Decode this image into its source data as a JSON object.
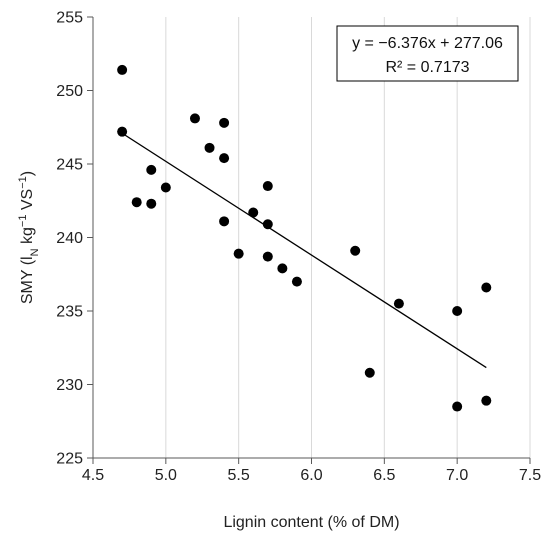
{
  "chart_data": {
    "type": "scatter",
    "xlabel": "Lignin content (% of DM)",
    "ylabel_parts": {
      "main": "SMY (l",
      "sub": "N",
      "mid": " kg",
      "sup1": "−1",
      "mid2": " VS",
      "sup2": "−1",
      "end": ")"
    },
    "xlim": [
      4.5,
      7.5
    ],
    "ylim": [
      225,
      255
    ],
    "x_ticks": [
      "4.5",
      "5.0",
      "5.5",
      "6.0",
      "6.5",
      "7.0",
      "7.5"
    ],
    "y_ticks": [
      "225",
      "230",
      "235",
      "240",
      "245",
      "250",
      "255"
    ],
    "grid": "vertical",
    "points": [
      {
        "x": 4.7,
        "y": 251.4
      },
      {
        "x": 4.7,
        "y": 247.2
      },
      {
        "x": 4.8,
        "y": 242.4
      },
      {
        "x": 4.9,
        "y": 244.6
      },
      {
        "x": 4.9,
        "y": 242.3
      },
      {
        "x": 5.0,
        "y": 243.4
      },
      {
        "x": 5.2,
        "y": 248.1
      },
      {
        "x": 5.3,
        "y": 246.1
      },
      {
        "x": 5.4,
        "y": 247.8
      },
      {
        "x": 5.4,
        "y": 245.4
      },
      {
        "x": 5.4,
        "y": 241.1
      },
      {
        "x": 5.5,
        "y": 238.9
      },
      {
        "x": 5.6,
        "y": 241.7
      },
      {
        "x": 5.7,
        "y": 243.5
      },
      {
        "x": 5.7,
        "y": 240.9
      },
      {
        "x": 5.7,
        "y": 238.7
      },
      {
        "x": 5.8,
        "y": 237.9
      },
      {
        "x": 5.9,
        "y": 237.0
      },
      {
        "x": 6.3,
        "y": 239.1
      },
      {
        "x": 6.4,
        "y": 230.8
      },
      {
        "x": 6.6,
        "y": 235.5
      },
      {
        "x": 7.0,
        "y": 235.0
      },
      {
        "x": 7.0,
        "y": 228.5
      },
      {
        "x": 7.2,
        "y": 236.6
      },
      {
        "x": 7.2,
        "y": 228.9
      }
    ],
    "trendline": {
      "slope": -6.376,
      "intercept": 277.06,
      "x_range": [
        4.7,
        7.2
      ]
    },
    "annotation": {
      "equation": "y = −6.376x + 277.06",
      "r2": "R² = 0.7173"
    },
    "colors": {
      "points": "#000000",
      "trendline": "#000000",
      "grid": "#d9d9d9"
    }
  }
}
